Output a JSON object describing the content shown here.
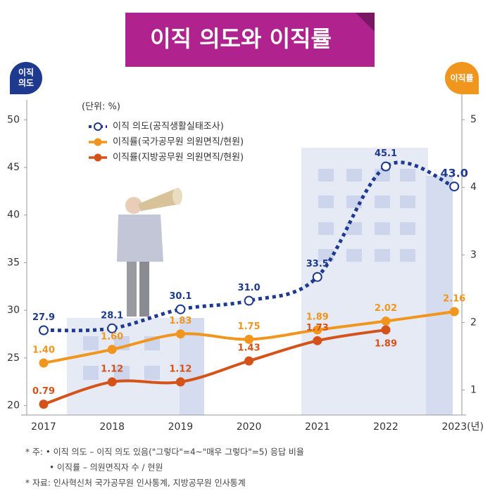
{
  "chart_data": {
    "type": "line",
    "title": "이직 의도와 이직률",
    "y_label": "이직 의도",
    "y2_label": "이직률",
    "unit": "(단위: %)",
    "categories": [
      "2017",
      "2018",
      "2019",
      "2020",
      "2021",
      "2022",
      "2023(년)"
    ],
    "series": [
      {
        "name": "이직 의도(공직생활실태조사)",
        "color": "#1e3a8f",
        "values": [
          27.9,
          28.1,
          30.1,
          31.0,
          33.5,
          45.1,
          43.0
        ],
        "value_labels": [
          "27.9",
          "28.1",
          "30.1",
          "31.0",
          "33.5",
          "45.1",
          "43.0"
        ]
      },
      {
        "name": "이직률(국가공무원 의원면직/현원)",
        "color": "#f0961e",
        "axis": "y2",
        "values": [
          1.4,
          1.6,
          1.83,
          1.75,
          1.89,
          2.02,
          2.16
        ],
        "value_labels": [
          "1.40",
          "1.60",
          "1.83",
          "1.75",
          "1.89",
          "2.02",
          "2.16"
        ]
      },
      {
        "name": "이직률(지방공무원 의원면직/현원)",
        "color": "#d4531b",
        "axis": "y2",
        "values": [
          0.79,
          1.12,
          1.12,
          1.43,
          1.73,
          1.89,
          null
        ],
        "value_labels": [
          "0.79",
          "1.12",
          "1.12",
          "1.43",
          "1.73",
          "1.89",
          null
        ]
      }
    ],
    "ylim": [
      19,
      51.5
    ],
    "yticks": [
      20,
      25,
      30,
      35,
      40,
      45,
      50
    ],
    "y2lim": [
      0.63,
      5.21
    ],
    "y2ticks": [
      1,
      2,
      3,
      4,
      5
    ],
    "notes": [
      "* 주: • 이직 의도 – 이직 의도 있음(\"그렇다\"=4~\"매우 그렇다\"=5) 응답 비율",
      "• 이직률 – 의원면직자 수 / 현원",
      "* 자료: 인사혁신처 국가공무원 인사통계, 지방공무원 인사통계"
    ]
  }
}
